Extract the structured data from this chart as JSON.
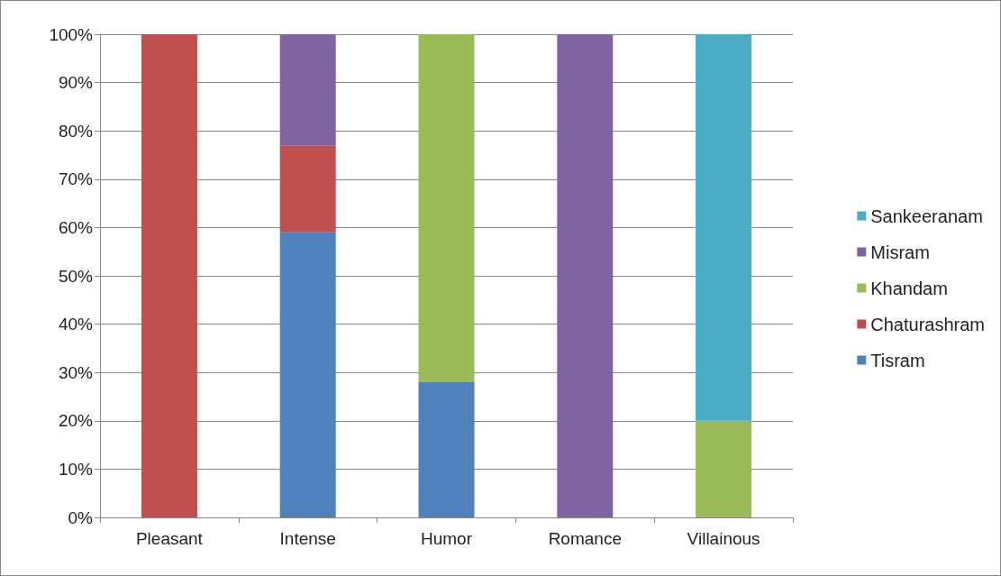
{
  "chart_data": {
    "type": "bar",
    "stacked": true,
    "categories": [
      "Pleasant",
      "Intense",
      "Humor",
      "Romance",
      "Villainous"
    ],
    "series": [
      {
        "name": "Tisram",
        "color": "#4f81bd",
        "values": [
          null,
          59,
          28,
          null,
          null
        ]
      },
      {
        "name": "Chaturashram",
        "color": "#c0504d",
        "values": [
          100,
          18,
          null,
          null,
          null
        ]
      },
      {
        "name": "Khandam",
        "color": "#9bbb59",
        "values": [
          null,
          null,
          72,
          null,
          20
        ]
      },
      {
        "name": "Misram",
        "color": "#8064a2",
        "values": [
          null,
          23,
          null,
          100,
          null
        ]
      },
      {
        "name": "Sankeeranam",
        "color": "#4bacc6",
        "values": [
          null,
          null,
          null,
          null,
          80
        ]
      }
    ],
    "ylim": [
      0,
      100
    ],
    "yticks": [
      {
        "value": 0,
        "label": "0%"
      },
      {
        "value": 10,
        "label": "10%"
      },
      {
        "value": 20,
        "label": "20%"
      },
      {
        "value": 30,
        "label": "30%"
      },
      {
        "value": 40,
        "label": "40%"
      },
      {
        "value": 50,
        "label": "50%"
      },
      {
        "value": 60,
        "label": "60%"
      },
      {
        "value": 70,
        "label": "70%"
      },
      {
        "value": 80,
        "label": "80%"
      },
      {
        "value": 90,
        "label": "90%"
      },
      {
        "value": 100,
        "label": "100%"
      }
    ],
    "grid": "y",
    "legend": "right"
  }
}
